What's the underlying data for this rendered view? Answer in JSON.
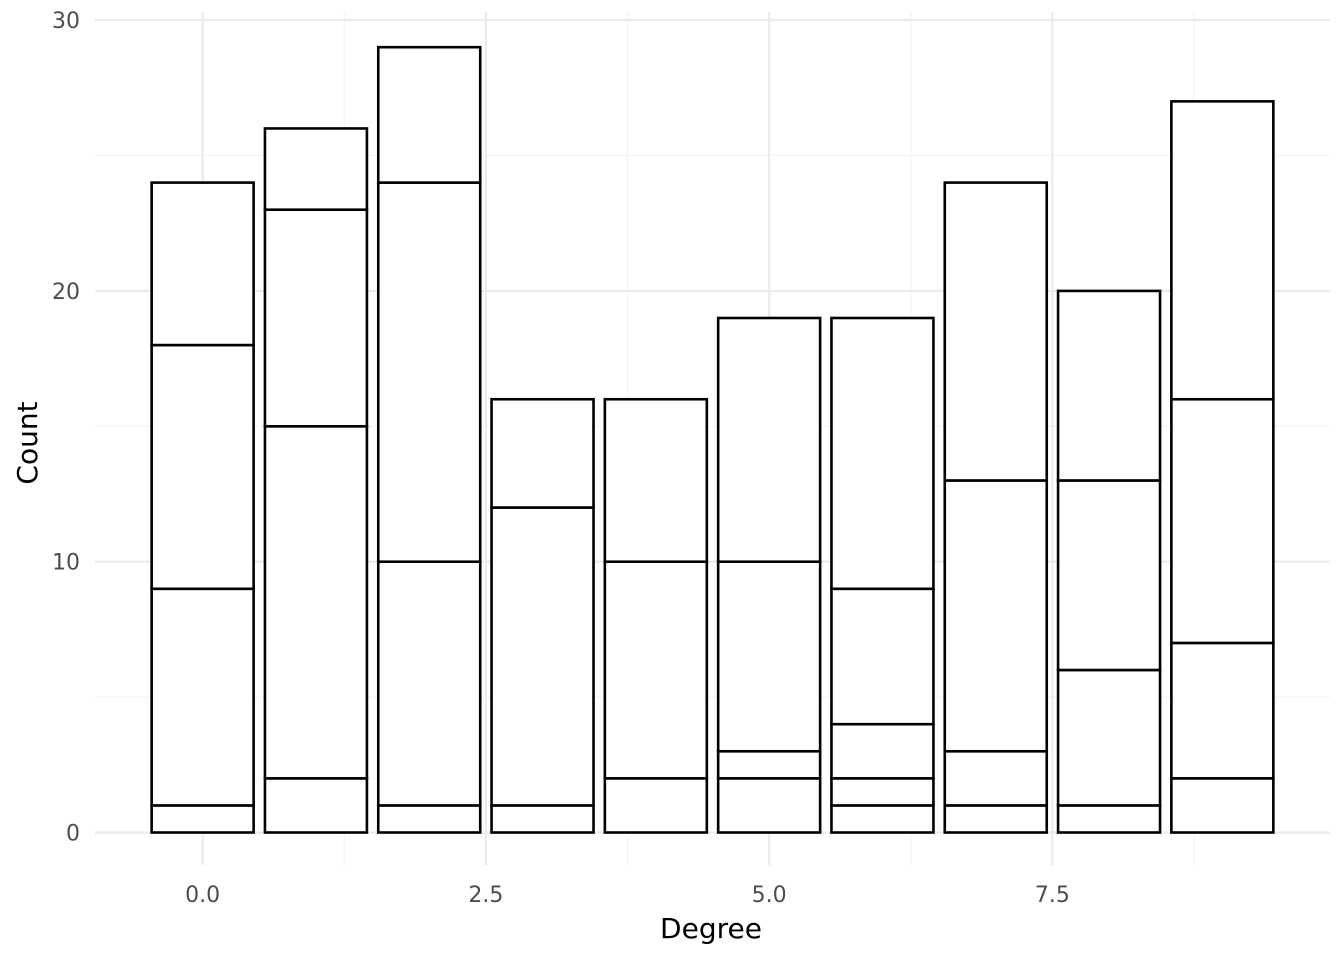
{
  "chart_data": {
    "type": "bar",
    "stacked": true,
    "title": "",
    "xlabel": "Degree",
    "ylabel": "Count",
    "x": [
      0,
      1,
      2,
      3,
      4,
      5,
      6,
      7,
      8,
      9
    ],
    "stack_boundaries": [
      [
        1,
        9,
        18,
        24
      ],
      [
        2,
        15,
        23,
        26
      ],
      [
        1,
        10,
        24,
        29
      ],
      [
        1,
        12,
        16
      ],
      [
        2,
        10,
        16
      ],
      [
        2,
        3,
        10,
        19
      ],
      [
        1,
        2,
        4,
        9,
        19
      ],
      [
        1,
        3,
        13,
        24
      ],
      [
        1,
        6,
        13,
        20
      ],
      [
        2,
        7,
        16,
        27
      ]
    ],
    "totals": [
      24,
      26,
      29,
      16,
      16,
      19,
      19,
      24,
      20,
      27
    ],
    "xlim": [
      -0.95,
      9.95
    ],
    "ylim": [
      -1.2,
      30.3
    ],
    "x_ticks": [
      0,
      2.5,
      5,
      7.5
    ],
    "x_tick_labels": [
      "0.0",
      "2.5",
      "5.0",
      "7.5"
    ],
    "y_ticks": [
      0,
      10,
      20,
      30
    ],
    "y_tick_labels": [
      "0",
      "10",
      "20",
      "30"
    ],
    "bar_width": 0.9,
    "fill_color": "#ffffff",
    "outline_color": "#000000",
    "grid": true,
    "legend": "none"
  }
}
